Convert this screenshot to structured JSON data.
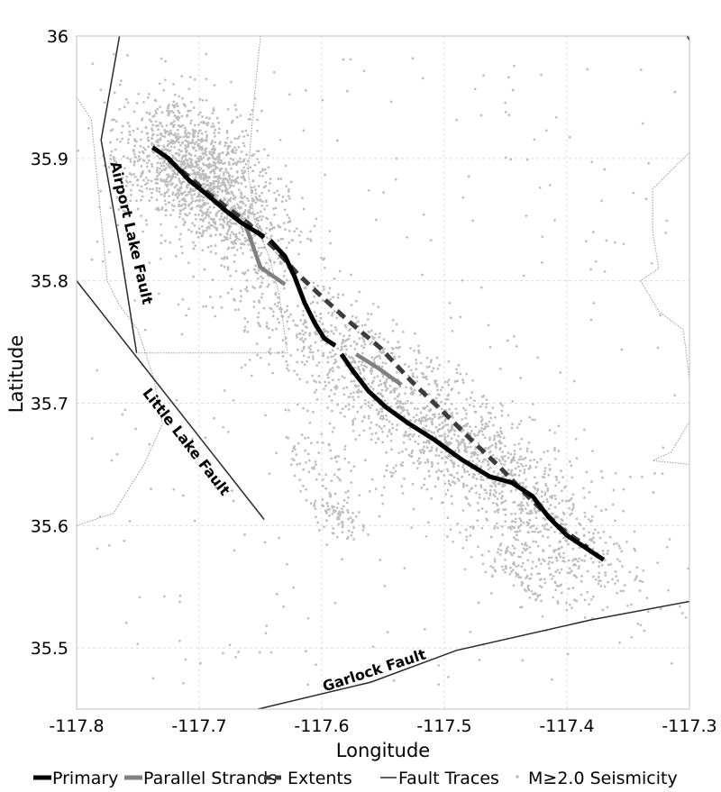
{
  "map": {
    "xlabel": "Longitude",
    "ylabel": "Latitude",
    "xlim": [
      -117.8,
      -117.3
    ],
    "ylim": [
      35.45,
      36.0
    ],
    "x_ticks": [
      -117.8,
      -117.7,
      -117.6,
      -117.5,
      -117.4,
      -117.3
    ],
    "x_tick_labels": [
      "-117.8",
      "-117.7",
      "-117.6",
      "-117.5",
      "-117.4",
      "-117.3"
    ],
    "y_ticks": [
      35.5,
      35.6,
      35.7,
      35.8,
      35.9,
      36.0
    ],
    "y_tick_labels": [
      "35.5",
      "35.6",
      "35.7",
      "35.8",
      "35.9",
      "36"
    ],
    "grid": true,
    "legend_position": "bottom",
    "colors": {
      "primary": "#000000",
      "parallel": "#808080",
      "extents": "#3c3c3c",
      "fault_traces": "#2a2a2a",
      "seismicity": "#bdbdbd",
      "boundary": "#999999"
    }
  },
  "chart_data": {
    "type": "map",
    "primary_rupture": [
      [
        [
          -117.738,
          35.909
        ],
        [
          -117.725,
          35.9
        ],
        [
          -117.708,
          35.882
        ],
        [
          -117.693,
          35.87
        ],
        [
          -117.678,
          35.857
        ],
        [
          -117.665,
          35.847
        ],
        [
          -117.647,
          35.836
        ]
      ],
      [
        [
          -117.642,
          35.833
        ],
        [
          -117.63,
          35.82
        ],
        [
          -117.622,
          35.803
        ],
        [
          -117.614,
          35.782
        ],
        [
          -117.606,
          35.766
        ],
        [
          -117.598,
          35.753
        ],
        [
          -117.589,
          35.747
        ]
      ],
      [
        [
          -117.584,
          35.74
        ],
        [
          -117.575,
          35.727
        ],
        [
          -117.562,
          35.71
        ],
        [
          -117.548,
          35.697
        ],
        [
          -117.53,
          35.684
        ],
        [
          -117.508,
          35.67
        ],
        [
          -117.486,
          35.654
        ],
        [
          -117.463,
          35.64
        ],
        [
          -117.445,
          35.635
        ],
        [
          -117.428,
          35.624
        ],
        [
          -117.415,
          35.607
        ],
        [
          -117.4,
          35.592
        ],
        [
          -117.385,
          35.582
        ],
        [
          -117.37,
          35.572
        ]
      ]
    ],
    "parallel_strands": [
      [
        [
          -117.663,
          35.848
        ],
        [
          -117.656,
          35.828
        ],
        [
          -117.65,
          35.811
        ],
        [
          -117.64,
          35.804
        ],
        [
          -117.63,
          35.797
        ]
      ],
      [
        [
          -117.572,
          35.74
        ],
        [
          -117.553,
          35.728
        ],
        [
          -117.535,
          35.715
        ]
      ]
    ],
    "extents": [
      [
        -117.725,
        35.899
      ],
      [
        -117.692,
        35.871
      ],
      [
        -117.66,
        35.847
      ],
      [
        -117.638,
        35.826
      ],
      [
        -117.62,
        35.806
      ],
      [
        -117.6,
        35.787
      ],
      [
        -117.578,
        35.767
      ],
      [
        -117.552,
        35.745
      ],
      [
        -117.527,
        35.718
      ],
      [
        -117.5,
        35.692
      ],
      [
        -117.478,
        35.67
      ],
      [
        -117.455,
        35.648
      ],
      [
        -117.43,
        35.622
      ],
      [
        -117.405,
        35.598
      ],
      [
        -117.383,
        35.582
      ]
    ],
    "fault_traces": [
      {
        "name": "Airport Lake Fault",
        "points": [
          [
            -117.765,
            36.0
          ],
          [
            -117.78,
            35.915
          ],
          [
            -117.765,
            35.83
          ],
          [
            -117.751,
            35.741
          ]
        ]
      },
      {
        "name": "Little Lake Fault",
        "points": [
          [
            -117.8,
            35.8
          ],
          [
            -117.647,
            35.605
          ]
        ]
      },
      {
        "name": "Garlock Fault",
        "points": [
          [
            -117.652,
            35.45
          ],
          [
            -117.56,
            35.472
          ],
          [
            -117.49,
            35.498
          ],
          [
            -117.38,
            35.523
          ],
          [
            -117.3,
            35.538
          ]
        ]
      },
      {
        "name": "",
        "points": [
          [
            -117.302,
            36.0
          ],
          [
            -117.296,
            35.99
          ]
        ]
      }
    ],
    "boundaries": [
      [
        [
          -117.8,
          35.95
        ],
        [
          -117.788,
          35.932
        ],
        [
          -117.775,
          35.8
        ],
        [
          -117.765,
          35.78
        ],
        [
          -117.75,
          35.76
        ],
        [
          -117.737,
          35.72
        ],
        [
          -117.73,
          35.683
        ],
        [
          -117.745,
          35.65
        ],
        [
          -117.77,
          35.61
        ],
        [
          -117.8,
          35.6
        ]
      ],
      [
        [
          -117.65,
          36.0
        ],
        [
          -117.655,
          35.95
        ],
        [
          -117.66,
          35.89
        ],
        [
          -117.655,
          35.85
        ],
        [
          -117.643,
          35.82
        ],
        [
          -117.635,
          35.79
        ],
        [
          -117.628,
          35.741
        ],
        [
          -117.751,
          35.741
        ]
      ],
      [
        [
          -117.3,
          35.905
        ],
        [
          -117.33,
          35.875
        ],
        [
          -117.33,
          35.84
        ],
        [
          -117.325,
          35.81
        ],
        [
          -117.34,
          35.8
        ],
        [
          -117.325,
          35.775
        ],
        [
          -117.305,
          35.76
        ],
        [
          -117.3,
          35.72
        ]
      ],
      [
        [
          -117.3,
          35.685
        ],
        [
          -117.315,
          35.66
        ],
        [
          -117.33,
          35.653
        ],
        [
          -117.3,
          35.65
        ]
      ]
    ],
    "fault_labels": [
      {
        "text": "Airport Lake Fault",
        "lon": -117.756,
        "lat": 35.839,
        "angle": 77
      },
      {
        "text": "Little Lake Fault",
        "lon": -117.711,
        "lat": 35.668,
        "angle": 52
      },
      {
        "text": "Garlock Fault",
        "lon": -117.557,
        "lat": 35.481,
        "angle": -18
      }
    ],
    "seismicity_clusters": [
      {
        "lon": -117.705,
        "lat": 35.895,
        "s_along": 0.035,
        "s_across": 0.026,
        "count": 1100
      },
      {
        "lon": -117.675,
        "lat": 35.855,
        "s_along": 0.035,
        "s_across": 0.018,
        "count": 450
      },
      {
        "lon": -117.56,
        "lat": 35.725,
        "s_along": 0.08,
        "s_across": 0.022,
        "count": 850
      },
      {
        "lon": -117.47,
        "lat": 35.65,
        "s_along": 0.06,
        "s_across": 0.024,
        "count": 650
      },
      {
        "lon": -117.4,
        "lat": 35.58,
        "s_along": 0.045,
        "s_across": 0.02,
        "count": 280
      },
      {
        "lon": -117.59,
        "lat": 35.61,
        "s_along": 0.014,
        "s_across": 0.008,
        "count": 80
      },
      {
        "lon": -117.44,
        "lat": 35.56,
        "s_along": 0.03,
        "s_across": 0.012,
        "count": 110
      },
      {
        "lon": -117.595,
        "lat": 35.66,
        "s_along": 0.03,
        "s_across": 0.018,
        "count": 90
      }
    ],
    "seismicity_scatter": {
      "lon_range": [
        -117.79,
        -117.31
      ],
      "lat_range": [
        35.47,
        35.99
      ],
      "count": 320
    }
  },
  "legend": [
    {
      "key": "primary",
      "label": "Primary",
      "style": "solid-thick"
    },
    {
      "key": "parallel",
      "label": "Parallel Strands",
      "style": "solid-gray"
    },
    {
      "key": "extents",
      "label": "Extents",
      "style": "dashed"
    },
    {
      "key": "fault_traces",
      "label": "Fault Traces",
      "style": "thin"
    },
    {
      "key": "seismicity",
      "label": "M≥2.0 Seismicity",
      "style": "dot"
    }
  ]
}
